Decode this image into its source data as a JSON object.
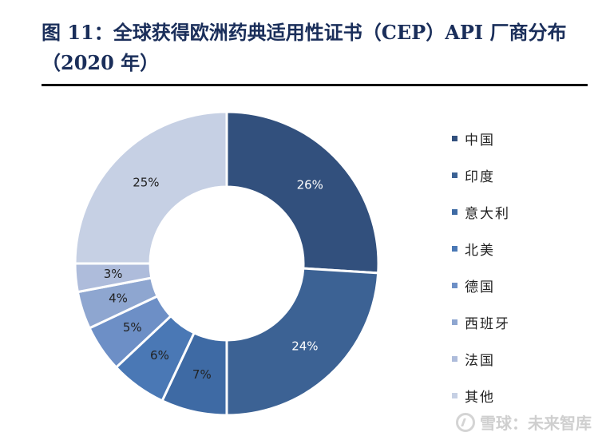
{
  "title": "图 11：全球获得欧洲药典适用性证书（CEP）API 厂商分布（2020 年）",
  "watermark": "雪球：未来智库",
  "chart_data": {
    "type": "pie",
    "variant": "donut",
    "title": "图 11：全球获得欧洲药典适用性证书（CEP）API 厂商分布（2020 年）",
    "categories": [
      "中国",
      "印度",
      "意大利",
      "北美",
      "德国",
      "西班牙",
      "法国",
      "其他"
    ],
    "values": [
      26,
      24,
      7,
      6,
      5,
      4,
      3,
      25
    ],
    "labels": [
      "26%",
      "24%",
      "7%",
      "6%",
      "5%",
      "4%",
      "3%",
      "25%"
    ],
    "colors": [
      "#32507d",
      "#3c6294",
      "#3e6aa4",
      "#4a78b5",
      "#6d8fc6",
      "#8ea6d0",
      "#aebcdb",
      "#c6d0e4"
    ],
    "label_colors": [
      "#ffffff",
      "#ffffff",
      "#222222",
      "#222222",
      "#222222",
      "#222222",
      "#222222",
      "#222222"
    ],
    "legend_position": "right"
  }
}
